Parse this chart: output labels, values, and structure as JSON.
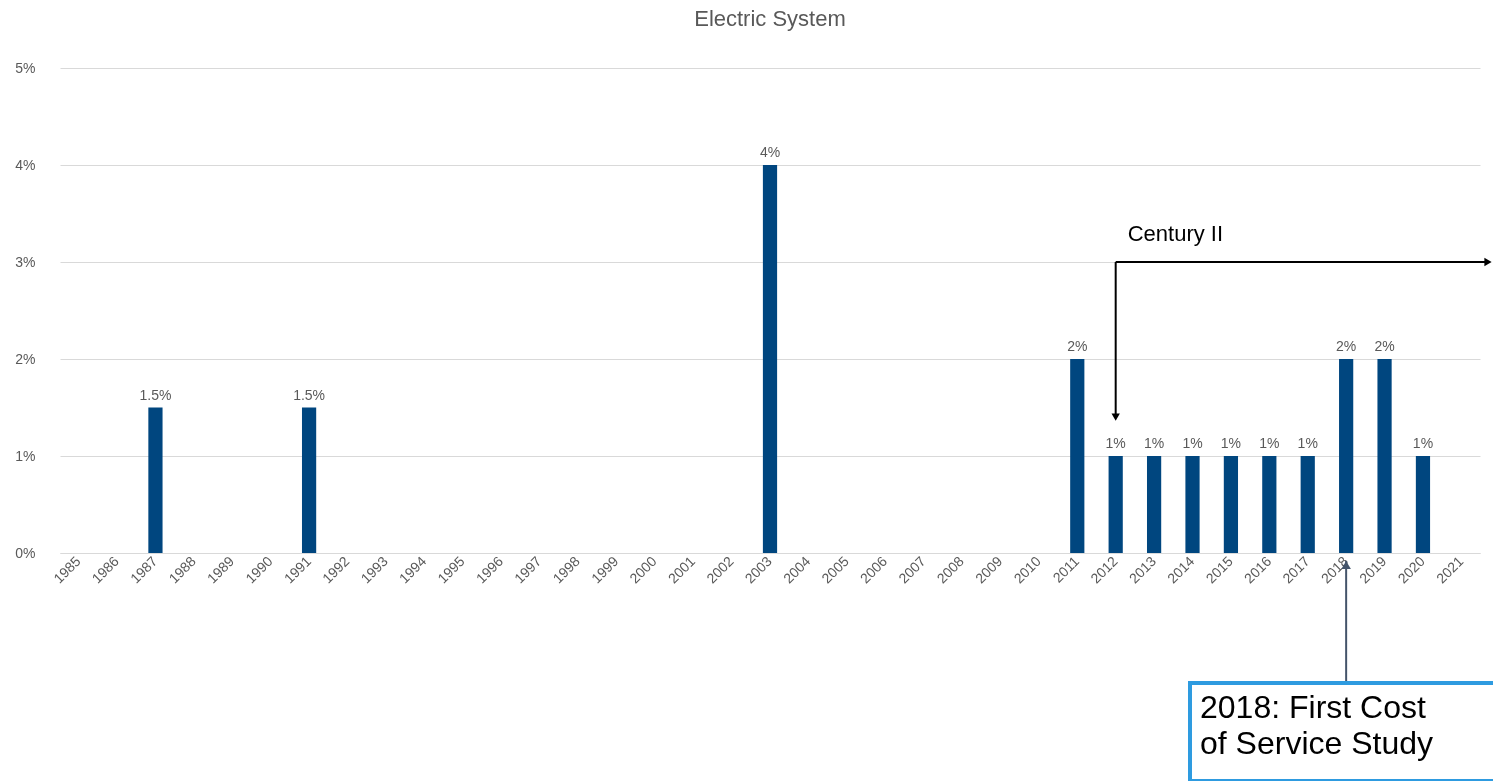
{
  "chart_data": {
    "type": "bar",
    "title": "Electric System",
    "categories": [
      "1985",
      "1986",
      "1987",
      "1988",
      "1989",
      "1990",
      "1991",
      "1992",
      "1993",
      "1994",
      "1995",
      "1996",
      "1997",
      "1998",
      "1999",
      "2000",
      "2001",
      "2002",
      "2003",
      "2004",
      "2005",
      "2006",
      "2007",
      "2008",
      "2009",
      "2010",
      "2011",
      "2012",
      "2013",
      "2014",
      "2015",
      "2016",
      "2017",
      "2018",
      "2019",
      "2020",
      "2021"
    ],
    "values": [
      null,
      null,
      1.5,
      null,
      null,
      null,
      1.5,
      null,
      null,
      null,
      null,
      null,
      null,
      null,
      null,
      null,
      null,
      null,
      4,
      null,
      null,
      null,
      null,
      null,
      null,
      null,
      2,
      1,
      1,
      1,
      1,
      1,
      1,
      2,
      2,
      1,
      null
    ],
    "value_labels": [
      null,
      null,
      "1.5%",
      null,
      null,
      null,
      "1.5%",
      null,
      null,
      null,
      null,
      null,
      null,
      null,
      null,
      null,
      null,
      null,
      "4%",
      null,
      null,
      null,
      null,
      null,
      null,
      null,
      "2%",
      "1%",
      "1%",
      "1%",
      "1%",
      "1%",
      "1%",
      "2%",
      "2%",
      "1%",
      null
    ],
    "color": "#00467f",
    "ylim": [
      0,
      5
    ],
    "yticks": [
      {
        "value": 0,
        "label": "0%"
      },
      {
        "value": 1,
        "label": "1%"
      },
      {
        "value": 2,
        "label": "2%"
      },
      {
        "value": 3,
        "label": "3%"
      },
      {
        "value": 4,
        "label": "4%"
      },
      {
        "value": 5,
        "label": "5%"
      }
    ],
    "grid": "y",
    "annotations": [
      "Century II",
      "2018: First Cost of Service Study"
    ]
  }
}
